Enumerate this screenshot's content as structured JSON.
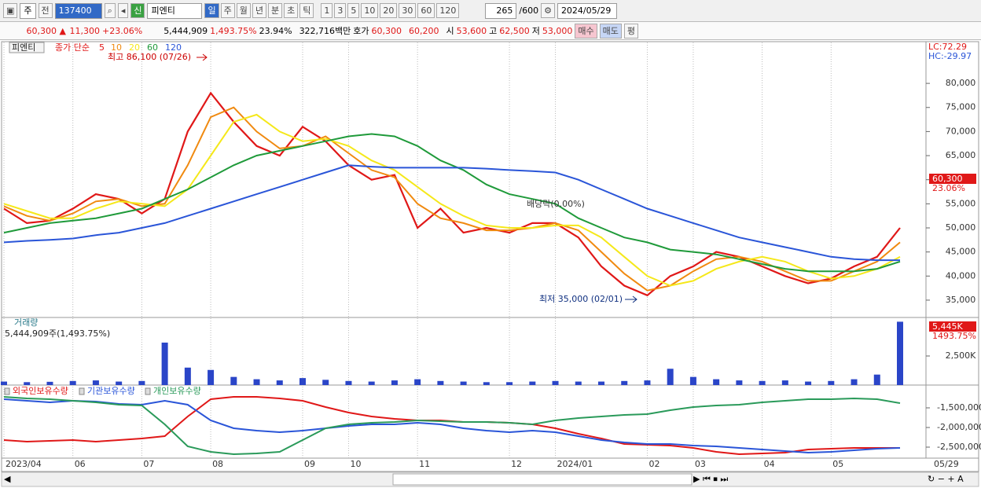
{
  "toolbar": {
    "market": "주",
    "prev": "전",
    "code": "137400",
    "badge": "신",
    "name": "피엔티",
    "periods": [
      "일",
      "주",
      "월",
      "년",
      "분",
      "초",
      "틱"
    ],
    "intervals": [
      "1",
      "3",
      "5",
      "10",
      "20",
      "30",
      "60",
      "120"
    ],
    "count": "265",
    "max": "/600",
    "date": "2024/05/29"
  },
  "quote": {
    "price": "60,300 ▲",
    "change": "11,300",
    "rate": "+23.06%",
    "volume": "5,444,909",
    "volume_rate": "1,493.75%",
    "turnover": "23.94%",
    "amount": "322,716백만",
    "bid_label": "호가",
    "ask": "60,300",
    "bid": "60,200",
    "open_label": "시",
    "open": "53,600",
    "high_label": "고",
    "high": "62,500",
    "low_label": "저",
    "low": "53,000",
    "buy": "매수",
    "sell": "매도",
    "avg": "평"
  },
  "chart_data": [
    {
      "type": "line",
      "title": "피엔티",
      "legend_prefix": "종가 단순",
      "categories": [
        "2023/04",
        null,
        null,
        "06",
        null,
        null,
        "07",
        null,
        null,
        "08",
        null,
        null,
        null,
        "09",
        null,
        "10",
        null,
        null,
        "11",
        null,
        null,
        null,
        "12",
        null,
        "2024/01",
        null,
        null,
        null,
        "02",
        null,
        "03",
        null,
        null,
        "04",
        null,
        null,
        "05",
        null,
        null,
        null
      ],
      "series": [
        {
          "name": "5",
          "color": "#e01818",
          "values": [
            54000,
            51000,
            51500,
            54000,
            57000,
            56000,
            53000,
            56000,
            70000,
            78000,
            72000,
            67000,
            65000,
            71000,
            68000,
            63000,
            60000,
            61000,
            50000,
            54000,
            49000,
            50000,
            49000,
            51000,
            51000,
            48000,
            42000,
            38000,
            36000,
            40000,
            42000,
            45000,
            44000,
            42000,
            40000,
            38500,
            39500,
            42000,
            44000,
            50000
          ]
        },
        {
          "name": "10",
          "color": "#f08a10",
          "values": [
            54500,
            52500,
            51500,
            53000,
            55500,
            56000,
            54500,
            55000,
            63000,
            73000,
            75000,
            70000,
            66500,
            67000,
            69000,
            65500,
            62000,
            60500,
            55000,
            52000,
            51000,
            49500,
            49500,
            50000,
            51000,
            49500,
            45000,
            40500,
            37000,
            38000,
            41000,
            43500,
            44000,
            43000,
            41000,
            39000,
            39000,
            41000,
            43000,
            47000
          ]
        },
        {
          "name": "20",
          "color": "#f5e81a",
          "values": [
            55000,
            53500,
            52000,
            52000,
            54000,
            55500,
            55000,
            54500,
            58000,
            65000,
            72000,
            73500,
            70000,
            68000,
            68500,
            67000,
            64000,
            62000,
            58500,
            55000,
            52500,
            50500,
            50000,
            50000,
            50500,
            50500,
            48000,
            44000,
            40000,
            38000,
            39000,
            41500,
            43000,
            44000,
            43000,
            41000,
            39500,
            40000,
            41500,
            44000
          ]
        },
        {
          "name": "60",
          "color": "#1f9a3a",
          "values": [
            49000,
            50000,
            51000,
            51500,
            52000,
            53000,
            54000,
            56000,
            58000,
            60500,
            63000,
            65000,
            66000,
            67000,
            68000,
            69000,
            69500,
            69000,
            67000,
            64000,
            62000,
            59000,
            57000,
            56000,
            55000,
            52000,
            50000,
            48000,
            47000,
            45500,
            45000,
            44500,
            43500,
            42500,
            41500,
            41000,
            41000,
            41000,
            41500,
            43000
          ]
        },
        {
          "name": "120",
          "color": "#2a55d8",
          "values": [
            47000,
            47300,
            47500,
            47800,
            48500,
            49000,
            50000,
            51000,
            52500,
            54000,
            55500,
            57000,
            58500,
            60000,
            61500,
            63000,
            62700,
            62500,
            62500,
            62500,
            62500,
            62300,
            62000,
            61800,
            61500,
            60000,
            58000,
            56000,
            54000,
            52500,
            51000,
            49500,
            48000,
            47000,
            46000,
            45000,
            44000,
            43500,
            43300,
            43300
          ]
        }
      ],
      "ylim": [
        31400,
        88500
      ],
      "yticks": [
        {
          "value": 35000,
          "label": "35,000"
        },
        {
          "value": 40000,
          "label": "40,000"
        },
        {
          "value": 45000,
          "label": "45,000"
        },
        {
          "value": 50000,
          "label": "50,000"
        },
        {
          "value": 55000,
          "label": "55,000"
        },
        {
          "value": 60000,
          "label": "60,000"
        },
        {
          "value": 65000,
          "label": "65,000"
        },
        {
          "value": 70000,
          "label": "70,000"
        },
        {
          "value": 75000,
          "label": "75,000"
        },
        {
          "value": 80000,
          "label": "80,000"
        }
      ],
      "grid": true,
      "annotations": {
        "high": "최고 86,100 (07/26)",
        "low": "최저 35,000 (02/01)",
        "dividend": "배당락(0.00%)",
        "lc": "LC:72.29",
        "hc": "HC:-29.97",
        "last_price": "60,300",
        "last_rate": "23.06%"
      }
    },
    {
      "type": "bar",
      "title": "거래량",
      "subtitle": "5,444,909주(1,493.75%)",
      "color": "#2a45c8",
      "values": [
        300,
        250,
        280,
        350,
        400,
        300,
        350,
        3650,
        1500,
        1300,
        700,
        500,
        400,
        600,
        450,
        350,
        300,
        400,
        500,
        350,
        300,
        250,
        250,
        300,
        350,
        300,
        300,
        350,
        400,
        1400,
        700,
        500,
        400,
        350,
        400,
        300,
        350,
        500,
        900,
        5445
      ],
      "ylim": [
        0,
        5810
      ],
      "yticks": [
        {
          "value": 2500,
          "label": "2,500K"
        }
      ],
      "annotations": {
        "last_volume": "5,445K",
        "last_rate": "1493.75%"
      }
    },
    {
      "type": "line",
      "last_date": "05/29",
      "series": [
        {
          "name": "외국인보유수량",
          "color": "#e01818",
          "values": [
            -2320000,
            -2360000,
            -2340000,
            -2320000,
            -2360000,
            -2320000,
            -2280000,
            -2220000,
            -1720000,
            -1280000,
            -1220000,
            -1220000,
            -1260000,
            -1320000,
            -1480000,
            -1620000,
            -1720000,
            -1780000,
            -1820000,
            -1820000,
            -1860000,
            -1860000,
            -1880000,
            -1920000,
            -2020000,
            -2160000,
            -2280000,
            -2420000,
            -2440000,
            -2460000,
            -2520000,
            -2620000,
            -2680000,
            -2660000,
            -2640000,
            -2560000,
            -2540000,
            -2520000,
            -2520000,
            -2520000
          ]
        },
        {
          "name": "기관보유수량",
          "color": "#2a55d8",
          "values": [
            -1280000,
            -1320000,
            -1360000,
            -1320000,
            -1340000,
            -1400000,
            -1420000,
            -1320000,
            -1420000,
            -1820000,
            -2020000,
            -2080000,
            -2120000,
            -2080000,
            -2020000,
            -1960000,
            -1920000,
            -1920000,
            -1880000,
            -1920000,
            -2020000,
            -2080000,
            -2120000,
            -2080000,
            -2120000,
            -2220000,
            -2320000,
            -2380000,
            -2420000,
            -2420000,
            -2460000,
            -2480000,
            -2520000,
            -2560000,
            -2600000,
            -2640000,
            -2620000,
            -2580000,
            -2540000,
            -2520000
          ]
        },
        {
          "name": "개인보유수량",
          "color": "#2a9a5a",
          "values": [
            -1220000,
            -1260000,
            -1280000,
            -1320000,
            -1360000,
            -1420000,
            -1440000,
            -1920000,
            -2480000,
            -2620000,
            -2680000,
            -2660000,
            -2620000,
            -2320000,
            -2020000,
            -1920000,
            -1880000,
            -1860000,
            -1820000,
            -1840000,
            -1860000,
            -1860000,
            -1880000,
            -1920000,
            -1820000,
            -1760000,
            -1720000,
            -1680000,
            -1660000,
            -1560000,
            -1480000,
            -1440000,
            -1420000,
            -1360000,
            -1320000,
            -1280000,
            -1280000,
            -1260000,
            -1280000,
            -1380000
          ]
        }
      ],
      "ylim": [
        -2780000,
        -920000
      ],
      "yticks": [
        {
          "value": -1500000,
          "label": "-1,500,000"
        },
        {
          "value": -2000000,
          "label": "-2,000,000"
        },
        {
          "value": -2500000,
          "label": "-2,500,000"
        }
      ]
    }
  ]
}
